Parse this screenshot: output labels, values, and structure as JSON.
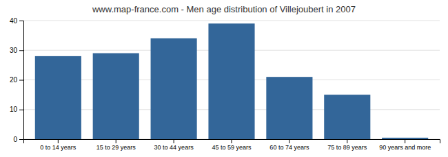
{
  "chart_data": {
    "type": "bar",
    "title": "www.map-france.com - Men age distribution of Villejoubert in 2007",
    "categories": [
      "0 to 14 years",
      "15 to 29 years",
      "30 to 44 years",
      "45 to 59 years",
      "60 to 74 years",
      "75 to 89 years",
      "90 years and more"
    ],
    "values": [
      28,
      29,
      34,
      39,
      21,
      15,
      0.5
    ],
    "color": "#336699",
    "ylim": [
      0,
      40
    ],
    "yticks": [
      0,
      10,
      20,
      30,
      40
    ],
    "grid": true
  }
}
